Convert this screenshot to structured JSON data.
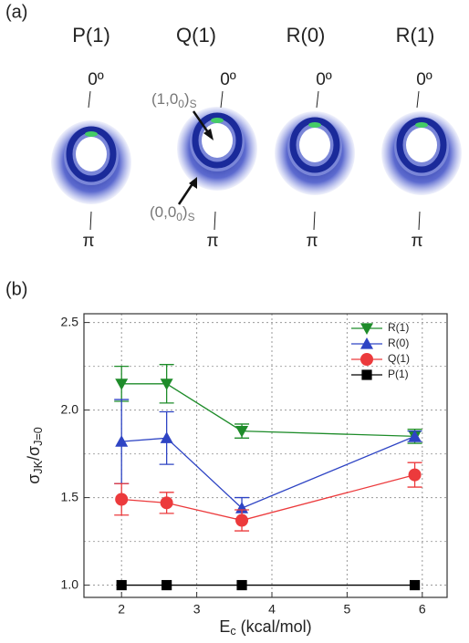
{
  "panel_a": {
    "panel_label": "(a)",
    "lines": [
      "P(1)",
      "Q(1)",
      "R(0)",
      "R(1)"
    ],
    "zero_labels": [
      "0º",
      "0º",
      "0º",
      "0º"
    ],
    "pi_labels": [
      "π",
      "π",
      "π",
      "π"
    ],
    "annotation_upper": [
      "(1,0",
      "0",
      ")",
      "S"
    ],
    "annotation_lower": [
      "(0,0",
      "0",
      ")",
      "S"
    ]
  },
  "chart_data": {
    "type": "line",
    "panel_label": "(b)",
    "xlabel": [
      "E",
      "c",
      " (kcal/mol)"
    ],
    "ylabel": [
      "σ",
      "JK",
      "/σ",
      "J=0"
    ],
    "x": [
      2,
      2.6,
      3.6,
      5.9
    ],
    "series": [
      {
        "name": "R(1)",
        "color": "#1e8c2a",
        "marker": "triangle-down",
        "values": [
          2.15,
          2.15,
          1.88,
          1.85
        ],
        "errors": [
          0.1,
          0.11,
          0.04,
          0.04
        ]
      },
      {
        "name": "R(0)",
        "color": "#2e44c4",
        "marker": "triangle-up",
        "values": [
          1.82,
          1.84,
          1.44,
          1.85
        ],
        "errors": [
          0.24,
          0.15,
          0.06,
          0.03
        ]
      },
      {
        "name": "Q(1)",
        "color": "#ec3a3c",
        "marker": "circle",
        "values": [
          1.49,
          1.47,
          1.37,
          1.63
        ],
        "errors": [
          0.09,
          0.06,
          0.06,
          0.07
        ]
      },
      {
        "name": "P(1)",
        "color": "#000000",
        "marker": "square",
        "values": [
          1.0,
          1.0,
          1.0,
          1.0
        ]
      }
    ],
    "xlim": [
      1.5,
      6.33
    ],
    "ylim": [
      0.93,
      2.55
    ],
    "xticks": [
      2,
      3,
      4,
      5,
      6
    ],
    "yticks": [
      {
        "value": 1,
        "label": "1.0"
      },
      1.5,
      {
        "value": 2,
        "label": "2.0"
      },
      2.5
    ],
    "y_minor_grid": [
      1.25,
      1.75,
      2.25
    ],
    "grid": true,
    "legend": "upper right"
  }
}
